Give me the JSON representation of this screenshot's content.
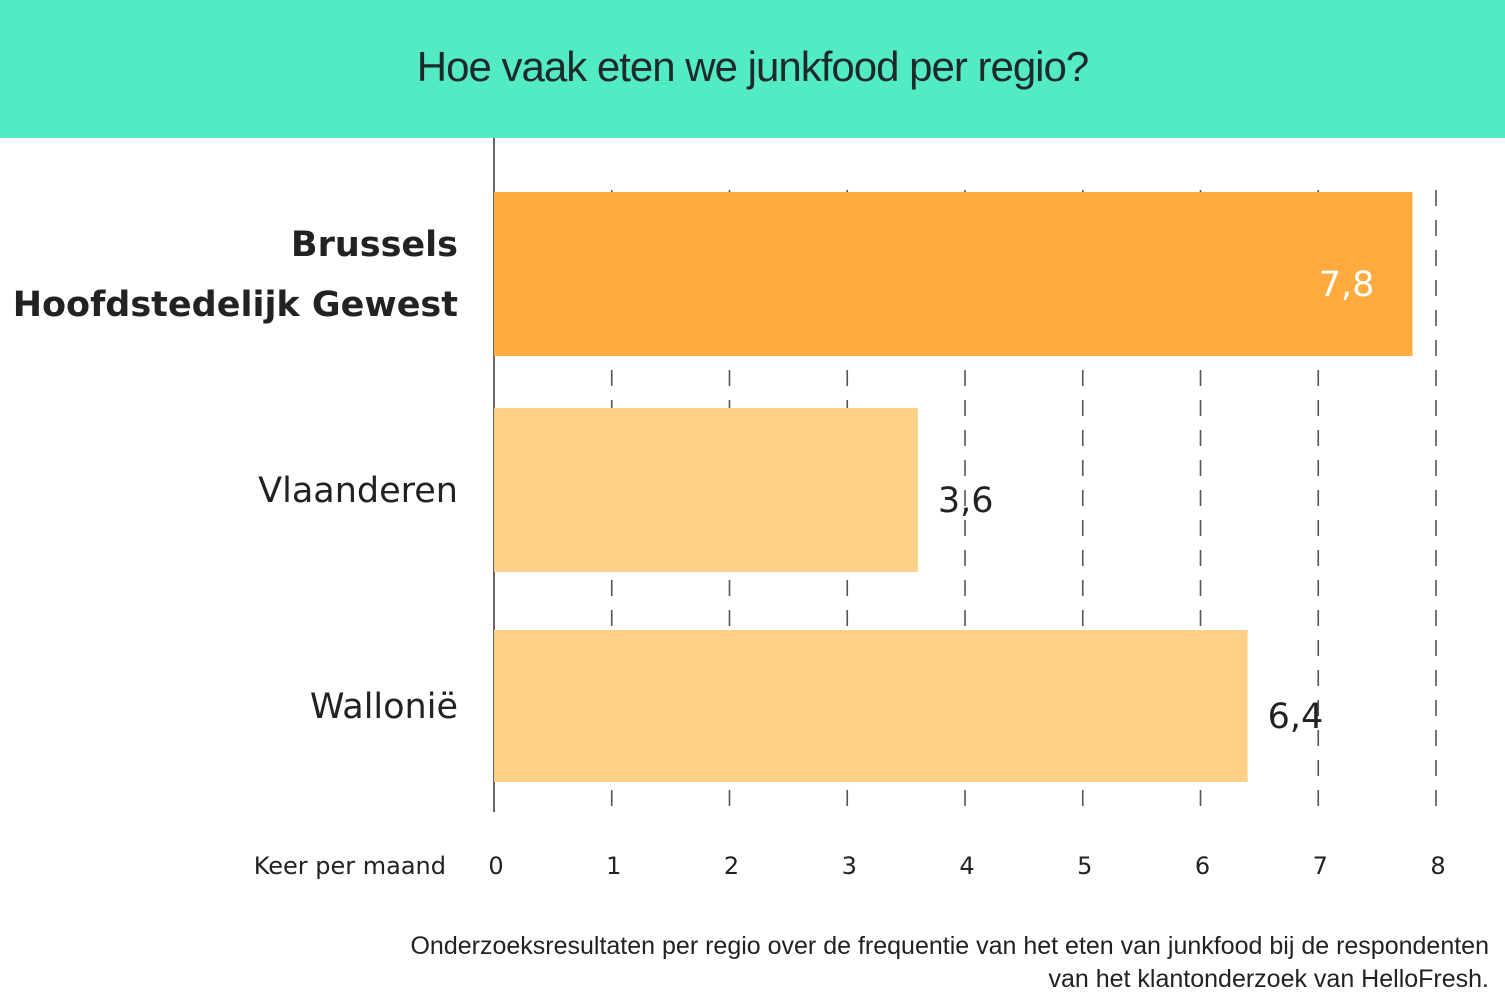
{
  "colors": {
    "header": "#52ebc4",
    "highlight_bar": "#ffab40",
    "bar": "#fed088",
    "grid": "#555555"
  },
  "chart_data": {
    "type": "bar",
    "orientation": "horizontal",
    "title": "Hoe vaak eten we junkfood per regio?",
    "categories": [
      [
        "Brussels",
        "Hoofdstedelijk Gewest"
      ],
      [
        "Vlaanderen"
      ],
      [
        "Wallonië"
      ]
    ],
    "values": [
      7.8,
      3.6,
      6.4
    ],
    "value_labels": [
      "7,8",
      "3,6",
      "6,4"
    ],
    "highlighted": [
      true,
      false,
      false
    ],
    "xlabel": "Keer per maand",
    "xlim": [
      0,
      8
    ],
    "xticks": [
      "0",
      "1",
      "2",
      "3",
      "4",
      "5",
      "6",
      "7",
      "8"
    ],
    "grid": "vertical dashed"
  },
  "caption": [
    "Onderzoeksresultaten per regio over de frequentie van het eten van junkfood bij de respondenten",
    "van het klantonderzoek van HelloFresh."
  ]
}
